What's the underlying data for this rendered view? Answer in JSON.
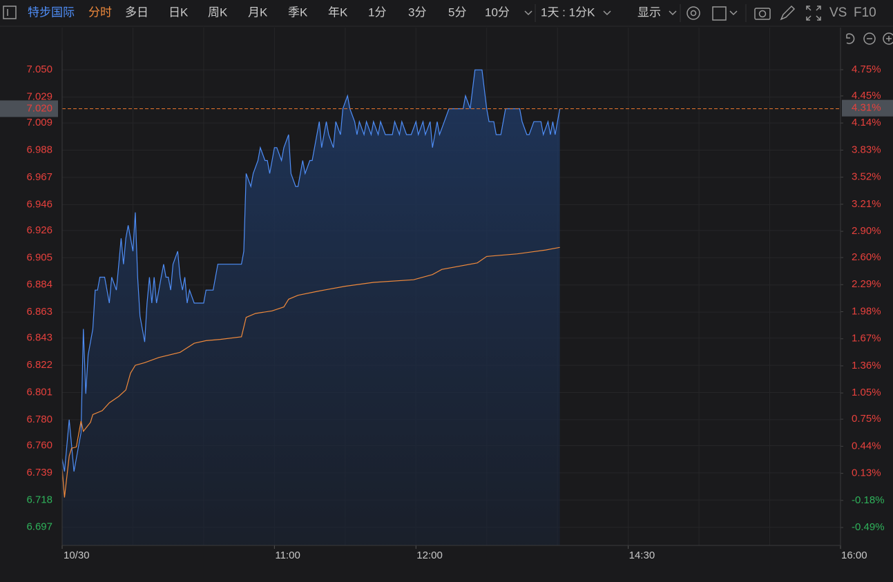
{
  "toolbar": {
    "symbol": "特步国际",
    "tabs": [
      "分时",
      "多日",
      "日K",
      "周K",
      "月K",
      "季K",
      "年K",
      "1分",
      "3分",
      "5分",
      "10分"
    ],
    "active_tab": 0,
    "period": "1天 : 1分K",
    "display": "显示",
    "vs": "VS",
    "f10": "F10"
  },
  "chart_data": {
    "type": "line",
    "grid": true,
    "up_color": "#e8413d",
    "down_color": "#2fb35b",
    "xlim": [
      0,
      330
    ],
    "xticks": [
      {
        "value": 0,
        "label": "10/30"
      },
      {
        "value": 90,
        "label": "11:00"
      },
      {
        "value": 150,
        "label": "12:00"
      },
      {
        "value": 240,
        "label": "14:30"
      },
      {
        "value": 330,
        "label": "16:00"
      }
    ],
    "ylim": [
      6.683,
      7.065
    ],
    "yticks": [
      {
        "value": 7.05,
        "label": "7.050"
      },
      7.029,
      7.009,
      6.988,
      6.967,
      6.946,
      6.926,
      6.905,
      6.884,
      6.863,
      6.843,
      6.822,
      6.801,
      {
        "value": 6.78,
        "label": "6.780"
      },
      {
        "value": 6.76,
        "label": "6.760"
      },
      6.739,
      6.718,
      6.697
    ],
    "y2lim": [
      -0.695,
      4.971
    ],
    "y2ticks": [
      {
        "value": 4.75,
        "label": "4.75%"
      },
      {
        "value": 4.45,
        "label": "4.45%"
      },
      {
        "value": 4.14,
        "label": "4.14%"
      },
      {
        "value": 3.83,
        "label": "3.83%"
      },
      {
        "value": 3.52,
        "label": "3.52%"
      },
      {
        "value": 3.21,
        "label": "3.21%"
      },
      {
        "value": 2.9,
        "label": "2.90%"
      },
      {
        "value": 2.6,
        "label": "2.60%"
      },
      {
        "value": 2.29,
        "label": "2.29%"
      },
      {
        "value": 1.98,
        "label": "1.98%"
      },
      {
        "value": 1.67,
        "label": "1.67%"
      },
      {
        "value": 1.36,
        "label": "1.36%"
      },
      {
        "value": 1.05,
        "label": "1.05%"
      },
      {
        "value": 0.75,
        "label": "0.75%"
      },
      {
        "value": 0.44,
        "label": "0.44%"
      },
      {
        "value": 0.13,
        "label": "0.13%"
      },
      {
        "value": -0.18,
        "label": "-0.18%"
      },
      {
        "value": -0.49,
        "label": "-0.49%"
      }
    ],
    "last_price": {
      "value": 7.02,
      "label": "7.020"
    },
    "last_change": {
      "value": 4.31,
      "label": "4.31%"
    },
    "series": [
      {
        "color": "#4f8ef7",
        "area": true,
        "x": [
          0,
          1,
          2,
          3,
          4,
          5,
          6,
          8,
          9,
          10,
          11,
          12,
          13,
          14,
          15,
          16,
          18,
          19,
          20,
          21,
          23,
          24,
          25,
          26,
          27,
          28,
          30,
          31,
          32,
          33,
          35,
          36,
          37,
          38,
          39,
          40,
          42,
          43,
          44,
          45,
          46,
          47,
          49,
          50,
          51,
          52,
          53,
          54,
          56,
          60,
          61,
          64,
          66,
          76,
          77,
          78,
          80,
          81,
          83,
          84,
          86,
          87,
          88,
          90,
          91,
          93,
          94,
          96,
          97,
          99,
          100,
          102,
          103,
          105,
          106,
          107,
          109,
          110,
          112,
          113,
          115,
          116,
          118,
          119,
          121,
          122,
          124,
          125,
          126,
          128,
          129,
          131,
          132,
          134,
          135,
          137,
          140,
          141,
          143,
          144,
          146,
          148,
          150,
          151,
          153,
          154,
          156,
          157,
          159,
          160,
          162,
          164,
          170,
          171,
          173,
          175,
          178,
          180,
          181,
          183,
          184,
          186,
          188,
          194,
          195,
          197,
          198,
          200,
          203,
          204,
          206,
          207,
          208,
          209,
          211
        ],
        "values": [
          6.75,
          6.74,
          6.76,
          6.78,
          6.76,
          6.74,
          6.75,
          6.77,
          6.85,
          6.8,
          6.83,
          6.84,
          6.85,
          6.88,
          6.88,
          6.89,
          6.89,
          6.88,
          6.87,
          6.89,
          6.88,
          6.9,
          6.92,
          6.9,
          6.92,
          6.93,
          6.91,
          6.94,
          6.89,
          6.86,
          6.84,
          6.87,
          6.89,
          6.87,
          6.89,
          6.87,
          6.89,
          6.9,
          6.89,
          6.89,
          6.88,
          6.9,
          6.91,
          6.89,
          6.88,
          6.89,
          6.87,
          6.88,
          6.87,
          6.87,
          6.88,
          6.88,
          6.9,
          6.9,
          6.91,
          6.97,
          6.96,
          6.97,
          6.98,
          6.99,
          6.98,
          6.98,
          6.97,
          6.99,
          6.99,
          6.98,
          6.99,
          7.0,
          6.97,
          6.96,
          6.96,
          6.98,
          6.97,
          6.98,
          6.98,
          6.99,
          7.01,
          6.99,
          7.01,
          7.0,
          6.99,
          7.01,
          7.0,
          7.02,
          7.03,
          7.02,
          7.01,
          7.0,
          7.01,
          7.0,
          7.01,
          7.0,
          7.01,
          7.0,
          7.01,
          7.0,
          7.0,
          7.01,
          7.0,
          7.01,
          7.0,
          7.0,
          7.01,
          7.0,
          7.01,
          7.0,
          7.01,
          6.99,
          7.01,
          7.0,
          7.01,
          7.02,
          7.02,
          7.03,
          7.02,
          7.05,
          7.05,
          7.02,
          7.01,
          7.01,
          7.0,
          7.0,
          7.02,
          7.02,
          7.01,
          7.0,
          7.0,
          7.01,
          7.01,
          7.0,
          7.01,
          7.0,
          7.01,
          7.0,
          7.02
        ]
      },
      {
        "color": "#f08a3c",
        "area": false,
        "x": [
          0,
          1,
          3,
          4,
          6,
          8,
          9,
          12,
          13,
          17,
          20,
          24,
          27,
          29,
          31,
          35,
          41,
          50,
          56,
          61,
          67,
          76,
          78,
          82,
          89,
          94,
          96,
          100,
          108,
          111,
          120,
          132,
          149,
          157,
          161,
          176,
          180,
          193,
          205,
          211
        ],
        "values": [
          6.742,
          6.72,
          6.752,
          6.758,
          6.759,
          6.779,
          6.771,
          6.778,
          6.784,
          6.787,
          6.793,
          6.798,
          6.803,
          6.816,
          6.822,
          6.824,
          6.828,
          6.832,
          6.839,
          6.841,
          6.842,
          6.844,
          6.859,
          6.862,
          6.864,
          6.867,
          6.873,
          6.876,
          6.879,
          6.88,
          6.883,
          6.886,
          6.888,
          6.892,
          6.896,
          6.901,
          6.906,
          6.908,
          6.911,
          6.913
        ]
      }
    ]
  }
}
